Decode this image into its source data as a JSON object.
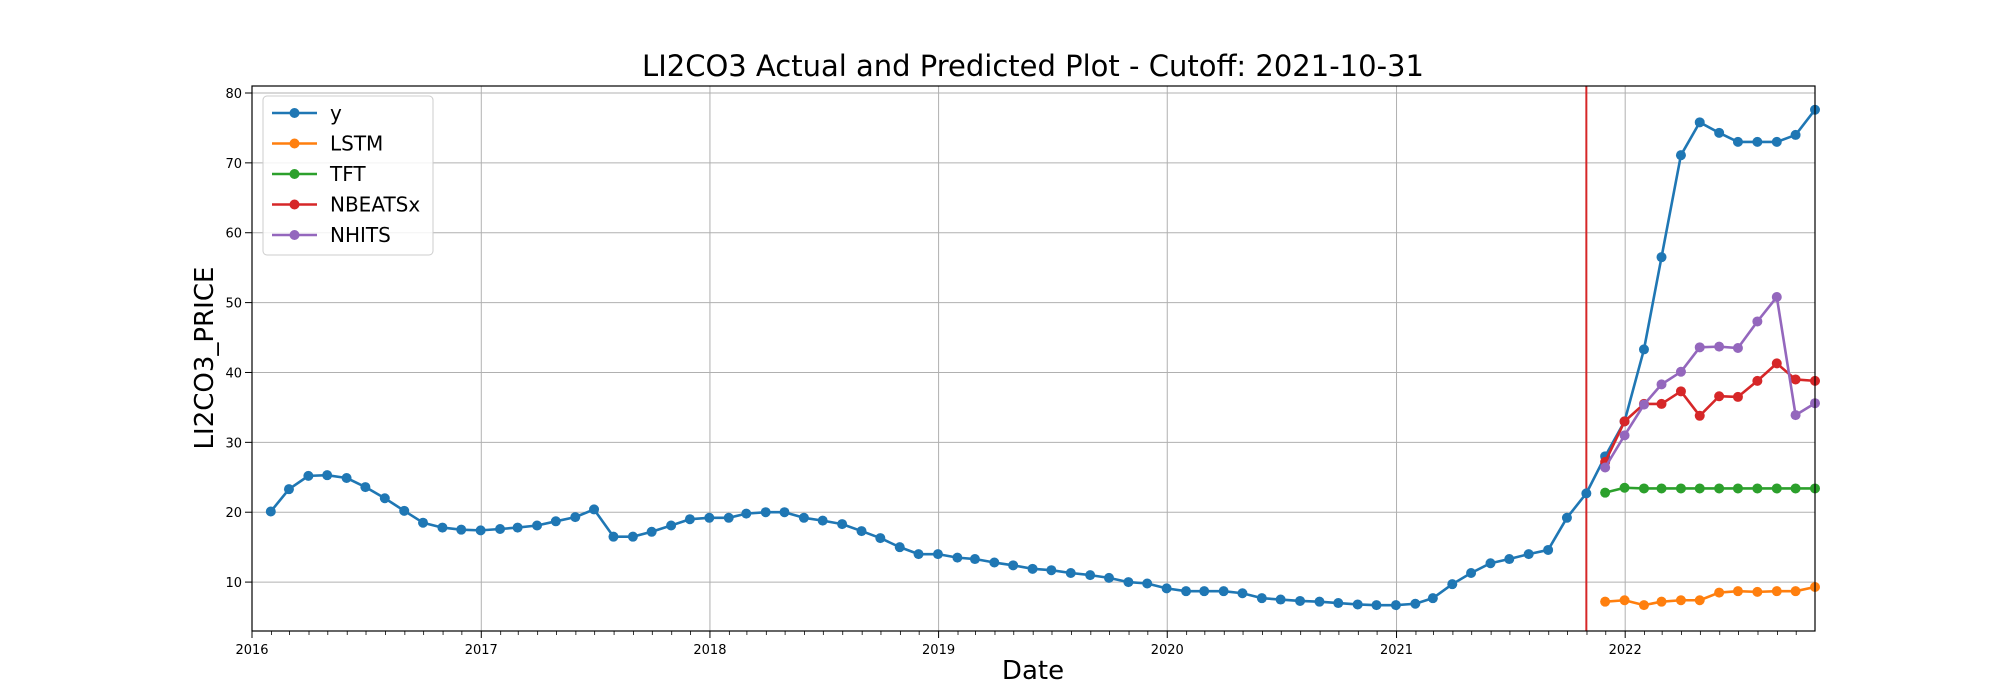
{
  "chart_data": {
    "type": "line",
    "title": "LI2CO3 Actual and Predicted Plot - Cutoff: 2021-10-31",
    "xlabel": "Date",
    "ylabel": "LI2CO3_PRICE",
    "xlim": [
      "2016-01-01",
      "2022-10-31"
    ],
    "ylim": [
      3,
      81
    ],
    "x_ticks": [
      "2016",
      "2017",
      "2018",
      "2019",
      "2020",
      "2021",
      "2022"
    ],
    "y_ticks": [
      10,
      20,
      30,
      40,
      50,
      60,
      70,
      80
    ],
    "grid": true,
    "legend_position": "top-left",
    "cutoff": {
      "date": "2021-10-31",
      "color": "#d62728"
    },
    "series": [
      {
        "name": "y",
        "color": "#1f77b4",
        "x": [
          "2016-01-31",
          "2016-02-29",
          "2016-03-31",
          "2016-04-30",
          "2016-05-31",
          "2016-06-30",
          "2016-07-31",
          "2016-08-31",
          "2016-09-30",
          "2016-10-31",
          "2016-11-30",
          "2016-12-31",
          "2017-01-31",
          "2017-02-28",
          "2017-03-31",
          "2017-04-30",
          "2017-05-31",
          "2017-06-30",
          "2017-07-31",
          "2017-08-31",
          "2017-09-30",
          "2017-10-31",
          "2017-11-30",
          "2017-12-31",
          "2018-01-31",
          "2018-02-28",
          "2018-03-31",
          "2018-04-30",
          "2018-05-31",
          "2018-06-30",
          "2018-07-31",
          "2018-08-31",
          "2018-09-30",
          "2018-10-31",
          "2018-11-30",
          "2018-12-31",
          "2019-01-31",
          "2019-02-28",
          "2019-03-31",
          "2019-04-30",
          "2019-05-31",
          "2019-06-30",
          "2019-07-31",
          "2019-08-31",
          "2019-09-30",
          "2019-10-31",
          "2019-11-30",
          "2019-12-31",
          "2020-01-31",
          "2020-02-29",
          "2020-03-31",
          "2020-04-30",
          "2020-05-31",
          "2020-06-30",
          "2020-07-31",
          "2020-08-31",
          "2020-09-30",
          "2020-10-31",
          "2020-11-30",
          "2020-12-31",
          "2021-01-31",
          "2021-02-28",
          "2021-03-31",
          "2021-04-30",
          "2021-05-31",
          "2021-06-30",
          "2021-07-31",
          "2021-08-31",
          "2021-09-30",
          "2021-10-31",
          "2021-11-30",
          "2021-12-31",
          "2022-01-31",
          "2022-02-28",
          "2022-03-31",
          "2022-04-30",
          "2022-05-31",
          "2022-06-30",
          "2022-07-31",
          "2022-08-31",
          "2022-09-30",
          "2022-10-31"
        ],
        "values": [
          20.1,
          23.3,
          25.2,
          25.3,
          24.9,
          23.6,
          22.0,
          20.2,
          18.5,
          17.8,
          17.5,
          17.4,
          17.6,
          17.8,
          18.1,
          18.7,
          19.3,
          20.4,
          16.5,
          16.5,
          17.2,
          18.1,
          19.0,
          19.2,
          19.2,
          19.8,
          20.0,
          20.0,
          19.2,
          18.8,
          18.3,
          17.3,
          16.3,
          15.0,
          14.0,
          14.0,
          13.5,
          13.3,
          12.8,
          12.4,
          11.9,
          11.7,
          11.3,
          11.0,
          10.6,
          10.0,
          9.8,
          9.1,
          8.7,
          8.7,
          8.7,
          8.4,
          7.7,
          7.5,
          7.3,
          7.2,
          7.0,
          6.8,
          6.7,
          6.7,
          6.9,
          7.7,
          9.7,
          11.3,
          12.7,
          13.3,
          14.0,
          14.6,
          19.2,
          22.7,
          28.0,
          33.0,
          43.3,
          56.5,
          71.1,
          75.8,
          74.3,
          73.0,
          73.0,
          73.0,
          74.0,
          77.6
        ]
      },
      {
        "name": "LSTM",
        "color": "#ff7f0e",
        "x": [
          "2021-11-30",
          "2021-12-31",
          "2022-01-31",
          "2022-02-28",
          "2022-03-31",
          "2022-04-30",
          "2022-05-31",
          "2022-06-30",
          "2022-07-31",
          "2022-08-31",
          "2022-09-30",
          "2022-10-31"
        ],
        "values": [
          7.2,
          7.4,
          6.7,
          7.2,
          7.4,
          7.4,
          8.5,
          8.7,
          8.6,
          8.7,
          8.7,
          9.3
        ]
      },
      {
        "name": "TFT",
        "color": "#2ca02c",
        "x": [
          "2021-11-30",
          "2021-12-31",
          "2022-01-31",
          "2022-02-28",
          "2022-03-31",
          "2022-04-30",
          "2022-05-31",
          "2022-06-30",
          "2022-07-31",
          "2022-08-31",
          "2022-09-30",
          "2022-10-31"
        ],
        "values": [
          22.8,
          23.5,
          23.4,
          23.4,
          23.4,
          23.4,
          23.4,
          23.4,
          23.4,
          23.4,
          23.4,
          23.4
        ]
      },
      {
        "name": "NBEATSx",
        "color": "#d62728",
        "x": [
          "2021-11-30",
          "2021-12-31",
          "2022-01-31",
          "2022-02-28",
          "2022-03-31",
          "2022-04-30",
          "2022-05-31",
          "2022-06-30",
          "2022-07-31",
          "2022-08-31",
          "2022-09-30",
          "2022-10-31"
        ],
        "values": [
          27.2,
          33.0,
          35.5,
          35.5,
          37.3,
          33.8,
          36.6,
          36.5,
          38.8,
          41.3,
          39.0,
          38.8
        ]
      },
      {
        "name": "NHITS",
        "color": "#9467bd",
        "x": [
          "2021-11-30",
          "2021-12-31",
          "2022-01-31",
          "2022-02-28",
          "2022-03-31",
          "2022-04-30",
          "2022-05-31",
          "2022-06-30",
          "2022-07-31",
          "2022-08-31",
          "2022-09-30",
          "2022-10-31"
        ],
        "values": [
          26.4,
          31.0,
          35.4,
          38.3,
          40.1,
          43.6,
          43.7,
          43.5,
          47.3,
          50.8,
          33.9,
          35.6
        ]
      }
    ]
  }
}
